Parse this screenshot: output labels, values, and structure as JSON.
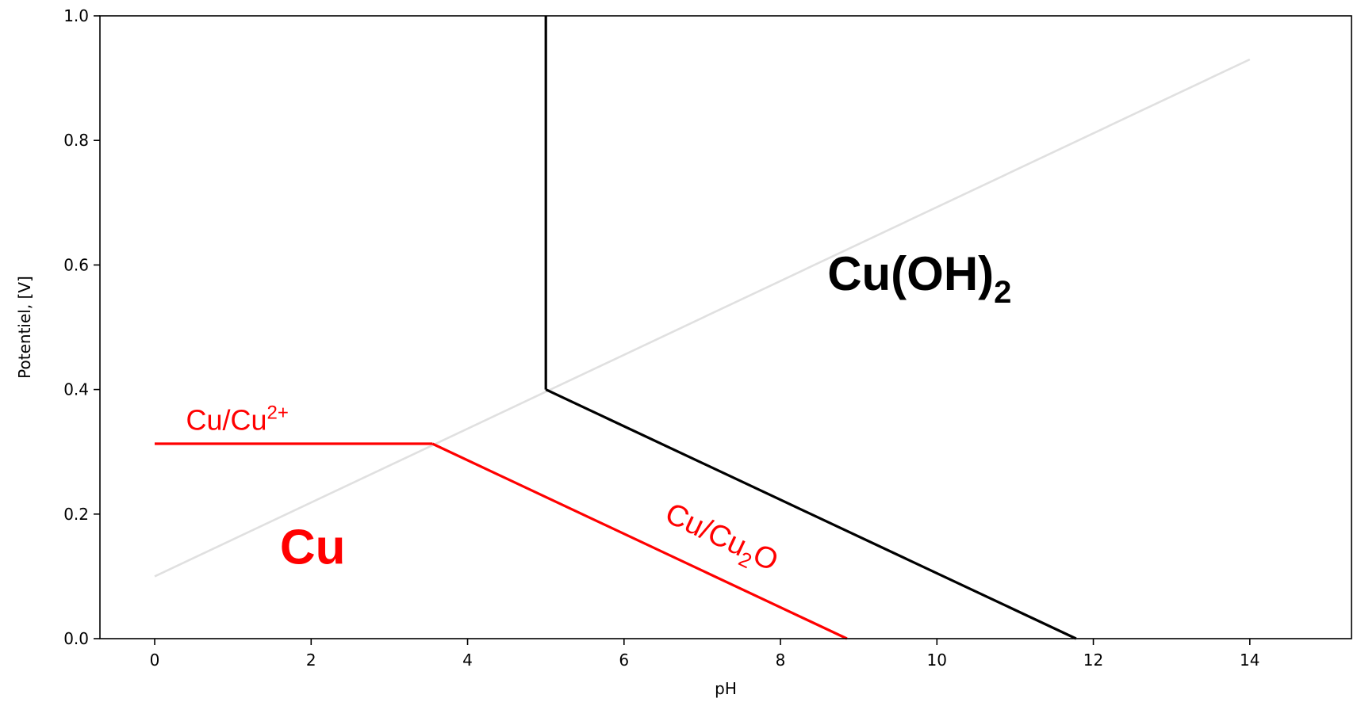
{
  "chart_data": {
    "type": "line",
    "title": "",
    "xlabel": "pH",
    "ylabel": "Potentiel, [V]",
    "xlim": [
      -0.7,
      15.3
    ],
    "ylim": [
      0.0,
      1.0
    ],
    "x_ticks": [
      0,
      2,
      4,
      6,
      8,
      10,
      12,
      14
    ],
    "y_ticks": [
      0.0,
      0.2,
      0.4,
      0.6,
      0.8,
      1.0
    ],
    "x_tick_labels": [
      "0",
      "2",
      "4",
      "6",
      "8",
      "10",
      "12",
      "14"
    ],
    "y_tick_labels": [
      "0.0",
      "0.2",
      "0.4",
      "0.6",
      "0.8",
      "1.0"
    ],
    "grid": false,
    "series": [
      {
        "key": "water",
        "color": "#e0e0e0",
        "x": [
          0,
          14
        ],
        "y": [
          0.1,
          0.93
        ]
      },
      {
        "key": "cu-cu2plus",
        "color": "#ff0000",
        "x": [
          0,
          3.55
        ],
        "y": [
          0.313,
          0.313
        ]
      },
      {
        "key": "cu-cu2o",
        "color": "#ff0000",
        "x": [
          3.55,
          8.85
        ],
        "y": [
          0.313,
          0.0
        ]
      },
      {
        "key": "cuoh2-vertical",
        "color": "#000000",
        "x": [
          5.0,
          5.0
        ],
        "y": [
          0.4,
          1.0
        ]
      },
      {
        "key": "cuoh2-sloped",
        "color": "#000000",
        "x": [
          5.0,
          11.78
        ],
        "y": [
          0.4,
          0.0
        ]
      }
    ],
    "annotations": {
      "cu_cu2plus": {
        "base": "Cu/Cu",
        "sup": "2+",
        "color": "#ff0000",
        "x": 0.4,
        "y": 0.335
      },
      "cu_cu2o": {
        "base": "Cu/Cu",
        "sub": "2",
        "tail": "O",
        "color": "#ff0000",
        "x": 6.5,
        "y": 0.19
      },
      "region_cu": {
        "text": "Cu",
        "color": "#ff0000",
        "x": 1.6,
        "y": 0.12
      },
      "region_cuoh2": {
        "base": "Cu(OH)",
        "sub": "2",
        "color": "#000000",
        "x": 8.6,
        "y": 0.56
      }
    }
  }
}
